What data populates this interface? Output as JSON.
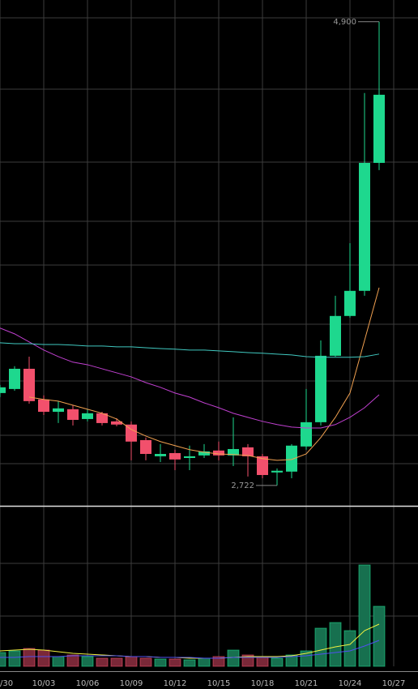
{
  "chart_data": {
    "type": "candlestick",
    "categories": [
      "/30",
      null,
      null,
      "10/03",
      null,
      null,
      "10/06",
      null,
      null,
      "10/09",
      null,
      null,
      "10/12",
      null,
      null,
      "10/15",
      null,
      null,
      "10/18",
      null,
      null,
      "10/21",
      null,
      null,
      "10/24",
      null,
      null,
      "10/27"
    ],
    "open": [
      3156,
      3175,
      3270,
      3126,
      3068,
      3080,
      3034,
      3061,
      3023,
      3008,
      2935,
      2859,
      2874,
      2851,
      2863,
      2886,
      2863,
      2901,
      2859,
      2783,
      2787,
      2905,
      3019,
      3331,
      3518,
      3636,
      4237,
      null
    ],
    "high": [
      3194,
      3282,
      3327,
      3145,
      3118,
      3099,
      3080,
      3068,
      3038,
      3023,
      2947,
      2916,
      2890,
      2909,
      2916,
      2928,
      3042,
      2916,
      2870,
      2802,
      2916,
      3175,
      3403,
      3613,
      3860,
      4565,
      4900,
      null
    ],
    "low": [
      3137,
      3167,
      3106,
      3053,
      3015,
      3004,
      3023,
      3004,
      3000,
      2840,
      2840,
      2832,
      2794,
      2794,
      2851,
      2840,
      2813,
      2764,
      2756,
      2722,
      2756,
      2890,
      3004,
      3327,
      3510,
      3613,
      4203,
      null
    ],
    "close": [
      3183,
      3270,
      3118,
      3068,
      3084,
      3030,
      3061,
      3015,
      3008,
      2928,
      2870,
      2870,
      2844,
      2859,
      2882,
      2863,
      2893,
      2859,
      2771,
      2791,
      2909,
      3019,
      3331,
      3518,
      3636,
      4237,
      4557,
      null
    ],
    "up_color": "#1ed88e",
    "down_color": "#f2506c",
    "ylim": [
      2634,
      5002
    ],
    "moving_averages": [
      {
        "color": "#f0a050",
        "values": [
          null,
          null,
          3137,
          3126,
          3118,
          3099,
          3080,
          3061,
          3034,
          2985,
          2954,
          2928,
          2909,
          2890,
          2878,
          2870,
          2867,
          2863,
          2848,
          2840,
          2844,
          2870,
          2947,
          3042,
          3156,
          3403,
          3651,
          null
        ]
      },
      {
        "color": "#c040d0",
        "values": [
          3461,
          3434,
          3396,
          3358,
          3327,
          3301,
          3289,
          3270,
          3251,
          3232,
          3205,
          3183,
          3156,
          3137,
          3110,
          3087,
          3061,
          3042,
          3023,
          3008,
          2996,
          2992,
          2992,
          3008,
          3042,
          3087,
          3148,
          null
        ]
      },
      {
        "color": "#40c8c0",
        "values": [
          3392,
          3388,
          3388,
          3384,
          3384,
          3381,
          3377,
          3377,
          3373,
          3373,
          3369,
          3365,
          3362,
          3358,
          3358,
          3354,
          3350,
          3346,
          3343,
          3339,
          3335,
          3327,
          3324,
          3324,
          3324,
          3327,
          3339,
          null
        ]
      }
    ],
    "annotations": [
      {
        "value": 4900,
        "label": "4,900"
      },
      {
        "value": 2722,
        "label": "2,722"
      }
    ],
    "volume": {
      "values": [
        17,
        19,
        22,
        20,
        12,
        14,
        12,
        10,
        10,
        12,
        10,
        9,
        9,
        8,
        10,
        12,
        20,
        14,
        12,
        10,
        14,
        19,
        47,
        54,
        44,
        125,
        74,
        null
      ],
      "ylim": [
        0,
        194
      ],
      "moving_averages": [
        {
          "color": "#f0f040",
          "values": [
            19,
            20,
            21,
            20,
            18,
            16,
            15,
            14,
            13,
            12,
            12,
            11,
            11,
            10,
            10,
            10,
            11,
            12,
            12,
            12,
            13,
            16,
            20,
            24,
            27,
            44,
            52,
            null
          ]
        },
        {
          "color": "#5050f0",
          "values": [
            11,
            11,
            12,
            12,
            12,
            13,
            13,
            13,
            13,
            12,
            12,
            11,
            11,
            11,
            10,
            10,
            11,
            11,
            11,
            11,
            12,
            13,
            15,
            17,
            19,
            25,
            32,
            null
          ]
        }
      ]
    }
  }
}
